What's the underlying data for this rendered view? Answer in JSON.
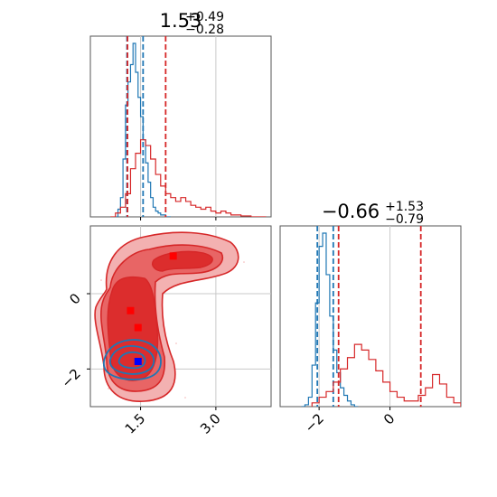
{
  "chart_data": [
    {
      "type": "histogram",
      "panel": "top-left",
      "title_main": "1.53",
      "title_plus": "+0.49",
      "title_minus": "−0.28",
      "xlim": [
        0.5,
        4.1
      ],
      "grid": true,
      "series": [
        {
          "color": "#1f77b4",
          "bin_edges": [
            1.0,
            1.05,
            1.1,
            1.15,
            1.2,
            1.25,
            1.3,
            1.35,
            1.4,
            1.45,
            1.5,
            1.55,
            1.6,
            1.65,
            1.7,
            1.75,
            1.8,
            1.85,
            1.9,
            1.95,
            2.0,
            2.05,
            2.1
          ],
          "values": [
            0.0,
            0.04,
            0.1,
            0.3,
            0.58,
            0.7,
            0.79,
            0.9,
            0.75,
            0.62,
            0.52,
            0.4,
            0.28,
            0.18,
            0.1,
            0.05,
            0.03,
            0.02,
            0.01,
            0.01,
            0.0,
            0.0
          ],
          "quantile_lines": [
            1.23,
            1.55
          ]
        },
        {
          "color": "#d62728",
          "bin_edges": [
            0.9,
            1.0,
            1.1,
            1.2,
            1.3,
            1.4,
            1.5,
            1.6,
            1.7,
            1.8,
            1.9,
            2.0,
            2.1,
            2.2,
            2.3,
            2.4,
            2.5,
            2.6,
            2.7,
            2.8,
            2.9,
            3.0,
            3.1,
            3.2,
            3.3,
            3.4,
            3.5,
            3.6,
            3.7,
            3.8,
            3.9,
            4.0
          ],
          "values": [
            0.0,
            0.02,
            0.05,
            0.12,
            0.25,
            0.33,
            0.4,
            0.37,
            0.3,
            0.22,
            0.16,
            0.12,
            0.1,
            0.08,
            0.1,
            0.08,
            0.06,
            0.05,
            0.04,
            0.05,
            0.03,
            0.02,
            0.03,
            0.02,
            0.01,
            0.01,
            0.005,
            0.005,
            0.0,
            0.0,
            0.0
          ],
          "quantile_lines": [
            1.24,
            2.0
          ]
        }
      ]
    },
    {
      "type": "contour",
      "panel": "bottom-left",
      "xlim": [
        0.5,
        4.1
      ],
      "ylim": [
        -3.0,
        1.8
      ],
      "grid": true,
      "xticks": [
        "1.5",
        "3.0"
      ],
      "yticks": [
        "0",
        "−2"
      ],
      "xtick_values": [
        1.5,
        3.0
      ],
      "ytick_values": [
        0.0,
        -2.0
      ],
      "markers": [
        {
          "x": 1.3,
          "y": -0.45,
          "color": "#ff0000"
        },
        {
          "x": 1.45,
          "y": -0.9,
          "color": "#ff0000"
        },
        {
          "x": 2.15,
          "y": 1.0,
          "color": "#ff0000"
        },
        {
          "x": 1.45,
          "y": -1.8,
          "color": "#0000ff"
        }
      ]
    },
    {
      "type": "histogram",
      "panel": "bottom-right",
      "title_main": "−0.66",
      "title_plus": "+1.53",
      "title_minus": "−0.79",
      "xlim": [
        -3.1,
        2.0
      ],
      "grid": true,
      "xticks": [
        "−2",
        "0"
      ],
      "xtick_values": [
        -2.0,
        0.0
      ],
      "series": [
        {
          "color": "#1f77b4",
          "bin_edges": [
            -2.5,
            -2.4,
            -2.3,
            -2.2,
            -2.1,
            -2.0,
            -1.9,
            -1.8,
            -1.7,
            -1.6,
            -1.5,
            -1.4,
            -1.3,
            -1.2,
            -1.1,
            -1.0,
            -0.9
          ],
          "values": [
            0.0,
            0.01,
            0.05,
            0.22,
            0.55,
            0.85,
            0.92,
            0.7,
            0.48,
            0.3,
            0.18,
            0.1,
            0.06,
            0.03,
            0.01,
            0.0
          ],
          "quantile_lines": [
            -2.05,
            -1.6
          ]
        },
        {
          "color": "#d62728",
          "bin_edges": [
            -2.2,
            -2.0,
            -1.8,
            -1.6,
            -1.4,
            -1.2,
            -1.0,
            -0.8,
            -0.6,
            -0.4,
            -0.2,
            0.0,
            0.2,
            0.4,
            0.6,
            0.8,
            1.0,
            1.2,
            1.4,
            1.6,
            1.8,
            2.0
          ],
          "values": [
            0.02,
            0.05,
            0.08,
            0.13,
            0.2,
            0.26,
            0.33,
            0.3,
            0.25,
            0.19,
            0.13,
            0.08,
            0.05,
            0.03,
            0.03,
            0.06,
            0.1,
            0.17,
            0.12,
            0.05,
            0.02
          ],
          "quantile_lines": [
            -1.45,
            0.87
          ]
        }
      ]
    }
  ]
}
